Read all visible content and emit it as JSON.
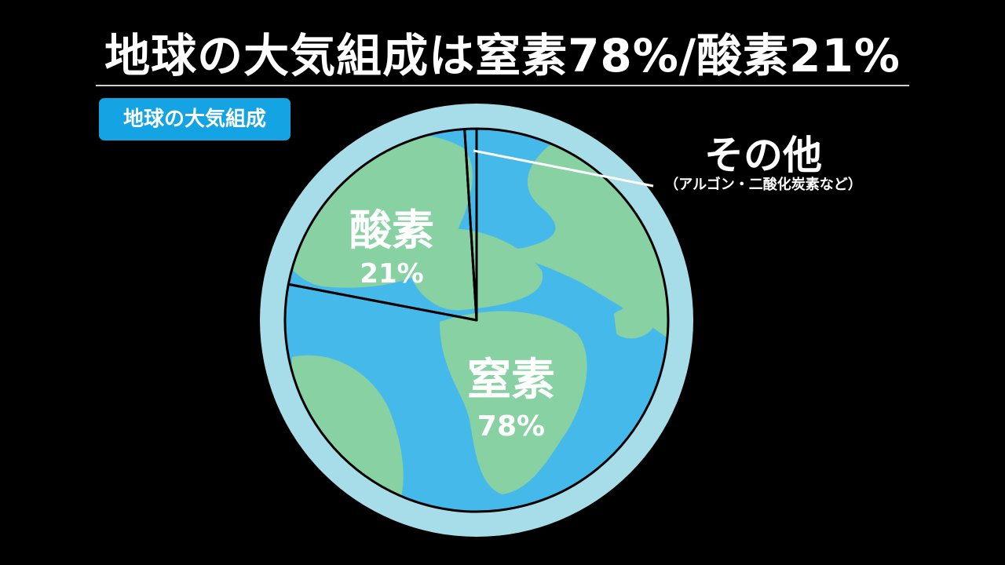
{
  "page": {
    "title": "地球の大気組成は窒素78%/酸素21%",
    "badge": "地球の大気組成"
  },
  "colors": {
    "background": "#000000",
    "atmosphere_ring": "#a6dde8",
    "ocean": "#45baea",
    "land": "#87d1a2",
    "badge": "#14a3e3",
    "outline": "#000000",
    "text": "#ffffff"
  },
  "chart_data": {
    "type": "pie",
    "title": "地球の大気組成",
    "slices": [
      {
        "name": "窒素",
        "value": 78,
        "value_label": "78%"
      },
      {
        "name": "酸素",
        "value": 21,
        "value_label": "21%"
      },
      {
        "name": "その他",
        "value": 1,
        "note": "（アルゴン・二酸化炭素など）"
      }
    ],
    "start_angle_deg": 0,
    "direction": "clockwise",
    "legend": "none"
  }
}
